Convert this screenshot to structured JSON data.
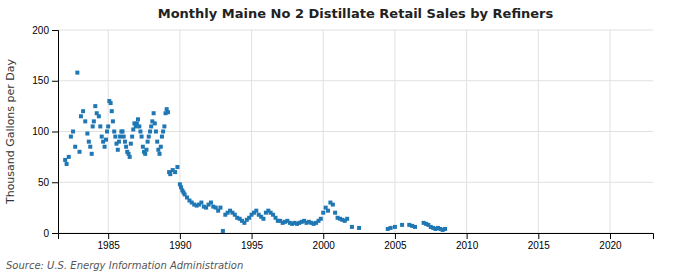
{
  "chart_data": {
    "type": "scatter",
    "title": "Monthly Maine No 2 Distillate Retail Sales by Refiners",
    "ylabel": "Thousand Gallons per Day",
    "source": "Source: U.S. Energy Information Administration",
    "marker": "square",
    "grid": true,
    "xlim": [
      1981.5,
      2023
    ],
    "ylim": [
      0,
      200
    ],
    "xticks": [
      1985,
      1990,
      1995,
      2000,
      2005,
      2010,
      2015,
      2020
    ],
    "yticks": [
      0,
      50,
      100,
      150,
      200
    ],
    "x": [
      1982.0,
      1982.1,
      1982.25,
      1982.4,
      1982.55,
      1982.7,
      1982.85,
      1983.0,
      1983.1,
      1983.25,
      1983.4,
      1983.55,
      1983.65,
      1983.75,
      1983.85,
      1983.92,
      1984.0,
      1984.1,
      1984.2,
      1984.35,
      1984.45,
      1984.55,
      1984.65,
      1984.75,
      1984.85,
      1984.92,
      1985.0,
      1985.08,
      1985.17,
      1985.25,
      1985.33,
      1985.42,
      1985.5,
      1985.58,
      1985.67,
      1985.75,
      1985.83,
      1985.92,
      1986.0,
      1986.08,
      1986.17,
      1986.25,
      1986.33,
      1986.42,
      1986.5,
      1986.58,
      1986.67,
      1986.75,
      1986.83,
      1986.92,
      1987.0,
      1987.08,
      1987.17,
      1987.25,
      1987.33,
      1987.42,
      1987.5,
      1987.58,
      1987.67,
      1987.75,
      1987.83,
      1987.92,
      1988.0,
      1988.08,
      1988.17,
      1988.25,
      1988.33,
      1988.42,
      1988.5,
      1988.58,
      1988.67,
      1988.75,
      1988.83,
      1988.92,
      1989.0,
      1989.08,
      1989.17,
      1989.25,
      1989.33,
      1989.5,
      1989.67,
      1989.83,
      1990.0,
      1990.08,
      1990.17,
      1990.25,
      1990.33,
      1990.5,
      1990.67,
      1990.83,
      1991.0,
      1991.17,
      1991.33,
      1991.5,
      1991.67,
      1991.83,
      1992.0,
      1992.17,
      1992.33,
      1992.5,
      1992.67,
      1992.83,
      1993.0,
      1993.17,
      1993.33,
      1993.5,
      1993.67,
      1993.83,
      1994.0,
      1994.17,
      1994.33,
      1994.5,
      1994.67,
      1994.83,
      1995.0,
      1995.17,
      1995.33,
      1995.5,
      1995.67,
      1995.83,
      1996.0,
      1996.17,
      1996.33,
      1996.5,
      1996.67,
      1996.83,
      1997.0,
      1997.17,
      1997.33,
      1997.5,
      1997.67,
      1997.83,
      1998.0,
      1998.17,
      1998.33,
      1998.5,
      1998.67,
      1998.83,
      1999.0,
      1999.17,
      1999.33,
      1999.5,
      1999.67,
      1999.83,
      2000.0,
      2000.17,
      2000.33,
      2000.5,
      2000.67,
      2000.83,
      2001.0,
      2001.17,
      2001.33,
      2001.5,
      2001.67,
      2002.0,
      2002.5,
      2004.5,
      2004.7,
      2005.0,
      2005.5,
      2006.0,
      2006.2,
      2006.4,
      2007.0,
      2007.17,
      2007.33,
      2007.5,
      2007.67,
      2007.83,
      2008.0,
      2008.17,
      2008.33,
      2008.5
    ],
    "values": [
      72,
      68,
      75,
      95,
      100,
      85,
      158,
      80,
      115,
      120,
      110,
      98,
      90,
      85,
      78,
      105,
      110,
      125,
      118,
      115,
      105,
      95,
      90,
      85,
      92,
      100,
      105,
      130,
      128,
      120,
      110,
      100,
      95,
      88,
      82,
      90,
      95,
      100,
      100,
      95,
      90,
      85,
      80,
      78,
      75,
      88,
      95,
      102,
      108,
      105,
      108,
      112,
      105,
      100,
      95,
      85,
      80,
      78,
      82,
      90,
      95,
      100,
      105,
      110,
      118,
      108,
      100,
      90,
      82,
      78,
      85,
      95,
      100,
      105,
      118,
      122,
      119,
      60,
      58,
      62,
      60,
      65,
      48,
      45,
      42,
      40,
      38,
      35,
      32,
      30,
      28,
      27,
      28,
      30,
      26,
      25,
      28,
      30,
      26,
      25,
      22,
      25,
      2,
      18,
      20,
      22,
      20,
      18,
      15,
      14,
      12,
      10,
      13,
      15,
      18,
      20,
      22,
      18,
      16,
      14,
      20,
      22,
      20,
      18,
      15,
      12,
      12,
      10,
      11,
      12,
      10,
      9,
      10,
      9,
      10,
      11,
      12,
      10,
      11,
      10,
      9,
      10,
      12,
      14,
      20,
      25,
      22,
      30,
      28,
      20,
      15,
      14,
      13,
      12,
      14,
      6,
      5,
      4,
      5,
      6,
      8,
      8,
      7,
      6,
      10,
      9,
      8,
      6,
      5,
      4,
      5,
      4,
      3,
      4
    ]
  }
}
